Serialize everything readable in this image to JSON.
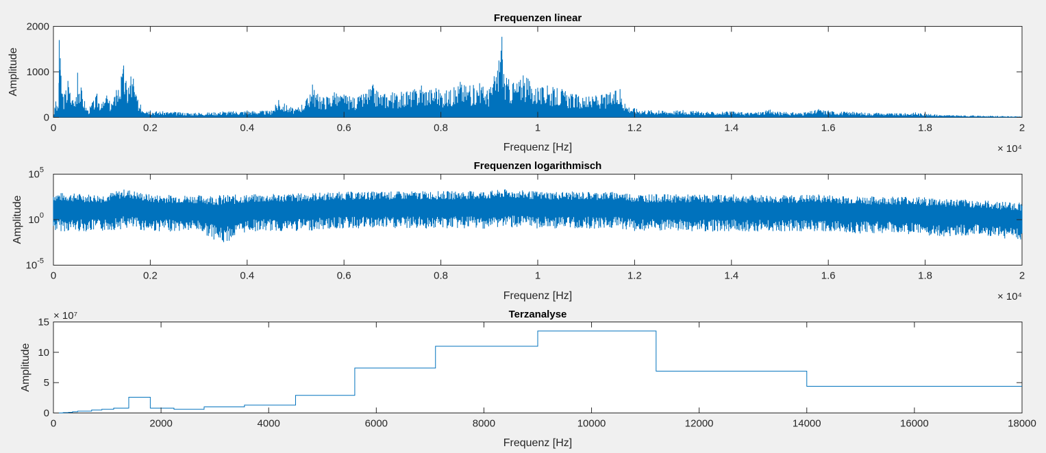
{
  "figure": {
    "background": "#f0f0f0",
    "line_color": "#0072bd"
  },
  "chart_data": [
    {
      "type": "line",
      "title": "Frequenzen linear",
      "xlabel": "Frequenz [Hz]",
      "ylabel": "Amplitude",
      "xlim": [
        0,
        20000
      ],
      "ylim": [
        0,
        2000
      ],
      "x_ticks": [
        0,
        2000,
        4000,
        6000,
        8000,
        10000,
        12000,
        14000,
        16000,
        18000,
        20000
      ],
      "x_tick_labels": [
        "0",
        "0.2",
        "0.4",
        "0.6",
        "0.8",
        "1",
        "1.2",
        "1.4",
        "1.6",
        "1.8",
        "2"
      ],
      "x_exponent_label": "× 10⁴",
      "y_ticks": [
        0,
        1000,
        2000
      ],
      "y_tick_labels": [
        "0",
        "1000",
        "2000"
      ],
      "series": [
        {
          "color": "#0072bd",
          "x": [
            0,
            50,
            100,
            120,
            200,
            300,
            400,
            450,
            500,
            700,
            800,
            900,
            1000,
            1100,
            1200,
            1300,
            1400,
            1450,
            1500,
            1550,
            1600,
            1650,
            1700,
            1800,
            2000,
            2500,
            3000,
            3500,
            4000,
            4500,
            4650,
            5000,
            5300,
            5350,
            5500,
            5800,
            6000,
            6300,
            6600,
            6700,
            7000,
            7300,
            7600,
            7900,
            8200,
            8400,
            8600,
            8800,
            9000,
            9200,
            9260,
            9300,
            9500,
            9700,
            9800,
            10000,
            10200,
            10500,
            10800,
            11000,
            11200,
            11500,
            11700,
            11800,
            12000,
            12500,
            13000,
            13500,
            14000,
            14500,
            14800,
            15000,
            15500,
            15800,
            16000,
            16500,
            17000,
            17500,
            17800,
            18000,
            18500,
            19000,
            19500,
            20000
          ],
          "y": [
            50,
            350,
            200,
            1700,
            450,
            800,
            380,
            350,
            980,
            150,
            320,
            520,
            300,
            480,
            300,
            600,
            900,
            1140,
            800,
            650,
            900,
            850,
            500,
            280,
            150,
            120,
            100,
            130,
            150,
            150,
            380,
            180,
            500,
            720,
            450,
            550,
            500,
            450,
            720,
            560,
            550,
            570,
            700,
            640,
            600,
            780,
            700,
            750,
            620,
            1250,
            1770,
            950,
            760,
            920,
            850,
            650,
            700,
            620,
            500,
            450,
            480,
            550,
            620,
            300,
            200,
            150,
            160,
            120,
            130,
            110,
            170,
            120,
            110,
            180,
            150,
            120,
            100,
            90,
            110,
            80,
            50,
            40,
            30,
            20
          ]
        }
      ]
    },
    {
      "type": "line",
      "title": "Frequenzen logarithmisch",
      "xlabel": "Frequenz [Hz]",
      "ylabel": "Amplitude",
      "xlim": [
        0,
        20000
      ],
      "ylim": [
        1e-05,
        100000
      ],
      "yscale": "log",
      "x_ticks": [
        0,
        2000,
        4000,
        6000,
        8000,
        10000,
        12000,
        14000,
        16000,
        18000,
        20000
      ],
      "x_tick_labels": [
        "0",
        "0.2",
        "0.4",
        "0.6",
        "0.8",
        "1",
        "1.2",
        "1.4",
        "1.6",
        "1.8",
        "2"
      ],
      "x_exponent_label": "× 10⁴",
      "y_ticks": [
        1e-05,
        1,
        100000
      ],
      "y_tick_labels": [
        "10",
        "10",
        "10"
      ],
      "y_tick_exponents": [
        "-5",
        "0",
        "5"
      ],
      "series": [
        {
          "color": "#0072bd",
          "x": [
            0,
            1000,
            1500,
            2000,
            3000,
            3500,
            4000,
            5000,
            6000,
            7000,
            8000,
            9000,
            9300,
            10000,
            11000,
            11700,
            12000,
            13000,
            14000,
            15000,
            15800,
            16500,
            17000,
            17600,
            18000,
            19000,
            20000
          ],
          "upper": [
            1000,
            600,
            2500,
            600,
            500,
            550,
            600,
            800,
            1200,
            1300,
            1400,
            1500,
            2200,
            1300,
            1200,
            1200,
            700,
            600,
            600,
            500,
            600,
            400,
            350,
            400,
            300,
            150,
            80
          ],
          "lower": [
            0.05,
            0.05,
            0.1,
            0.05,
            0.05,
            0.002,
            0.05,
            0.05,
            0.1,
            0.1,
            0.1,
            0.1,
            0.15,
            0.1,
            0.1,
            0.1,
            0.05,
            0.05,
            0.05,
            0.05,
            0.05,
            0.03,
            0.03,
            0.03,
            0.01,
            0.02,
            0.005
          ]
        }
      ]
    },
    {
      "type": "line",
      "title": "Terzanalyse",
      "xlabel": "Frequenz [Hz]",
      "ylabel": "Amplitude",
      "xlim": [
        0,
        18000
      ],
      "ylim": [
        0,
        15
      ],
      "y_exponent_label": "× 10⁷",
      "x_ticks": [
        0,
        2000,
        4000,
        6000,
        8000,
        10000,
        12000,
        14000,
        16000,
        18000
      ],
      "x_tick_labels": [
        "0",
        "2000",
        "4000",
        "6000",
        "8000",
        "10000",
        "12000",
        "14000",
        "16000",
        "18000"
      ],
      "y_ticks": [
        0,
        5,
        10,
        15
      ],
      "y_tick_labels": [
        "0",
        "5",
        "10",
        "15"
      ],
      "series": [
        {
          "color": "#0072bd",
          "step": "post",
          "x": [
            0,
            180,
            280,
            355,
            450,
            560,
            710,
            900,
            1120,
            1400,
            1800,
            2240,
            2800,
            3550,
            4500,
            5600,
            7100,
            9000,
            11200,
            14000,
            18000
          ],
          "y": [
            0,
            0.05,
            0.1,
            0.2,
            0.3,
            0.3,
            0.5,
            0.6,
            0.8,
            2.6,
            0.8,
            0.6,
            1.0,
            1.3,
            2.9,
            7.4,
            11.0,
            13.5,
            6.9,
            4.4,
            4.4
          ]
        }
      ]
    }
  ]
}
